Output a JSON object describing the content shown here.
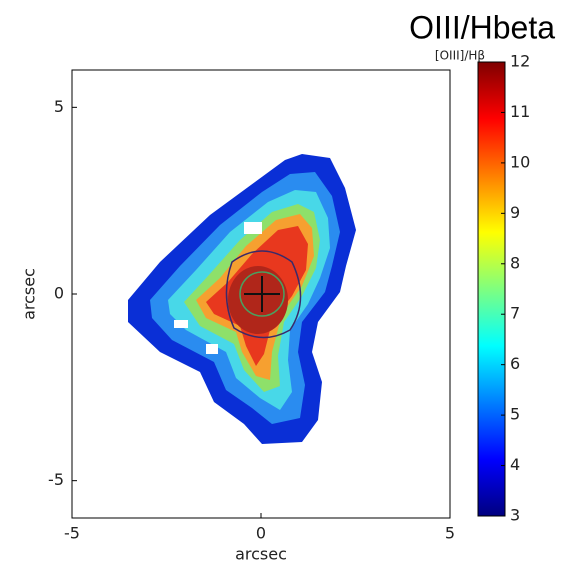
{
  "chart_data": {
    "type": "image",
    "title": "OIII/Hbeta",
    "colorbar_label": "[OIII]/Hβ",
    "xlabel": "arcsec",
    "ylabel": "arcsec",
    "xlim": [
      -5,
      5
    ],
    "xticks": [
      -5,
      0,
      5
    ],
    "ylim": [
      -6,
      6
    ],
    "yticks": [
      -5,
      0,
      5
    ],
    "clim": [
      3,
      12
    ],
    "cticks": [
      3,
      4,
      5,
      6,
      7,
      8,
      9,
      10,
      11,
      12
    ],
    "colormap": "jet"
  }
}
